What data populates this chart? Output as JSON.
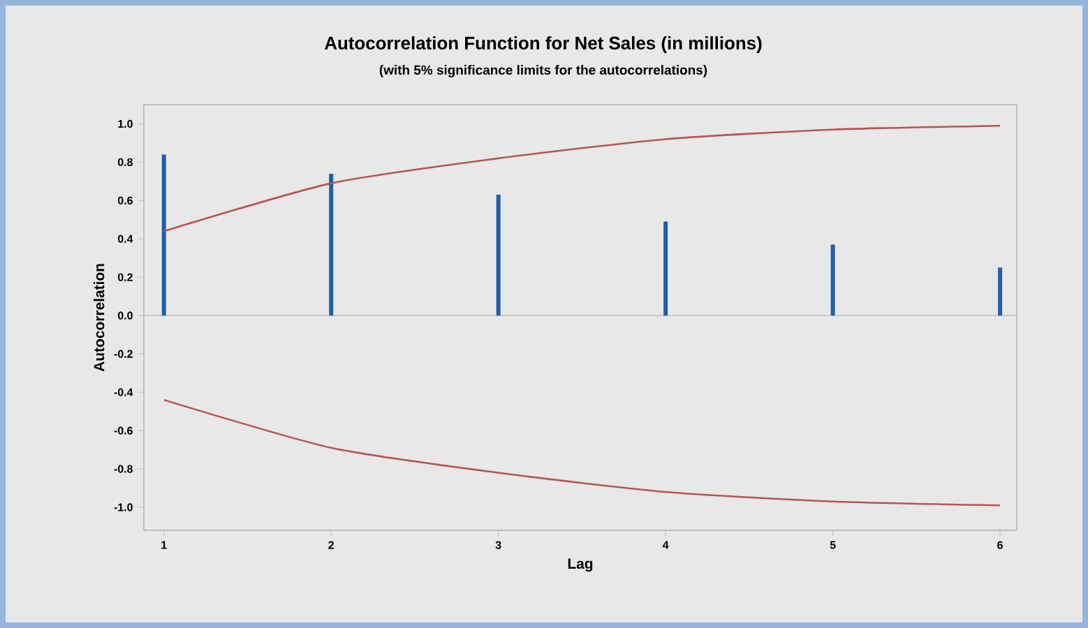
{
  "chart_data": {
    "type": "bar",
    "title": "Autocorrelation Function for Net Sales (in millions)",
    "subtitle": "(with 5% significance limits for the autocorrelations)",
    "xlabel": "Lag",
    "ylabel": "Autocorrelation",
    "x": [
      1,
      2,
      3,
      4,
      5,
      6
    ],
    "series": [
      {
        "color": "#1f5fa8",
        "values": [
          0.84,
          0.74,
          0.63,
          0.49,
          0.37,
          0.25
        ]
      },
      {
        "type": "line",
        "color": "#b85450",
        "values": [
          0.44,
          0.69,
          0.82,
          0.92,
          0.97,
          0.99
        ]
      },
      {
        "type": "line",
        "color": "#b85450",
        "values": [
          -0.44,
          -0.69,
          -0.82,
          -0.92,
          -0.97,
          -0.99
        ]
      }
    ],
    "xlim": [
      0.88,
      6.1
    ],
    "ylim": [
      -1.12,
      1.1
    ],
    "xticks": [
      1,
      2,
      3,
      4,
      5,
      6
    ],
    "yticks": [
      {
        "value": -1.0,
        "label": "-1.0"
      },
      {
        "value": -0.8,
        "label": "-0.8"
      },
      {
        "value": -0.6,
        "label": "-0.6"
      },
      {
        "value": -0.4,
        "label": "-0.4"
      },
      {
        "value": -0.2,
        "label": "-0.2"
      },
      {
        "value": 0.0,
        "label": "0.0"
      },
      {
        "value": 0.2,
        "label": "0.2"
      },
      {
        "value": 0.4,
        "label": "0.4"
      },
      {
        "value": 0.6,
        "label": "0.6"
      },
      {
        "value": 0.8,
        "label": "0.8"
      },
      {
        "value": 1.0,
        "label": "1.0"
      }
    ],
    "ref_lines": [
      {
        "axis": "y",
        "value": 0,
        "color": "#a0a0a0"
      }
    ],
    "grid": false,
    "line_style": "solid",
    "marker": "none"
  }
}
